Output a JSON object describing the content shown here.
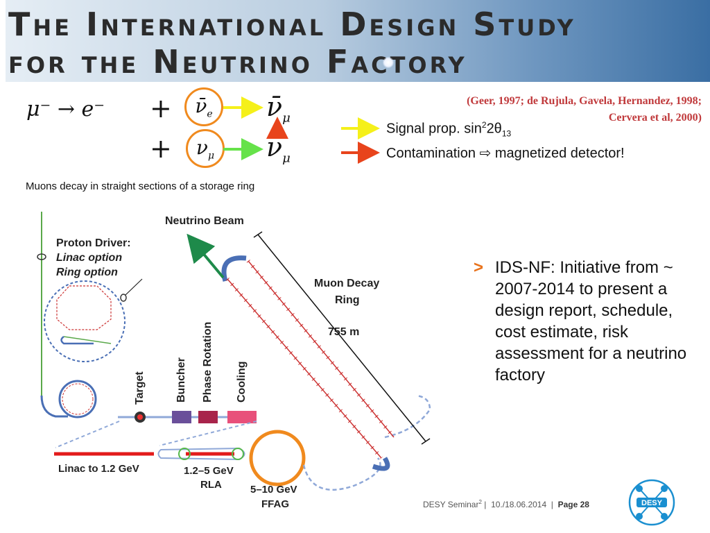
{
  "header": {
    "line1": "The International Design Study",
    "line2": "for the Neutrino Factory"
  },
  "equation": {
    "lhs": "μ⁻ → e⁻",
    "plus": "+",
    "nu_e_bar": "ν̄",
    "nu_e_sub": "e",
    "nu_mu_bar": "ν̄",
    "nu_mu_sub": "μ",
    "nu_mu": "ν",
    "mu_sub": "μ"
  },
  "reference": {
    "line1": "(Geer, 1997; de Rujula, Gavela, Hernandez, 1998;",
    "line2": "Cervera et al, 2000)"
  },
  "legend": {
    "signal_prefix": "Signal prop. sin",
    "signal_sup": "2",
    "signal_mid": "2θ",
    "signal_sub": "13",
    "contamination": "Contamination ⇨ magnetized detector!"
  },
  "caption": "Muons decay in straight sections of a storage ring",
  "diagram": {
    "neutrino_beam": "Neutrino Beam",
    "proton_driver": "Proton Driver:",
    "linac_option": "Linac option",
    "ring_option": "Ring option",
    "muon_decay_ring_1": "Muon Decay",
    "muon_decay_ring_2": "Ring",
    "length": "755 m",
    "target": "Target",
    "buncher": "Buncher",
    "phase_rotation": "Phase Rotation",
    "cooling": "Cooling",
    "linac": "Linac to 1.2 GeV",
    "rla_1": "1.2–5 GeV",
    "rla_2": "RLA",
    "ffag_1": "5–10 GeV",
    "ffag_2": "FFAG"
  },
  "bullet": {
    "marker": ">",
    "text": "IDS-NF: Initiative from ~ 2007-2014 to present a design report, schedule, cost estimate, risk assessment for a neutrino factory"
  },
  "footer": {
    "seminar": "DESY Seminar",
    "seminar_sup": "2",
    "sep1": " |  ",
    "date": "10./18.06.2014",
    "sep2": "  |  ",
    "page": "Page 28"
  },
  "logo": {
    "text": "DESY"
  },
  "colors": {
    "orange": "#f08a1e",
    "yellow_arrow": "#f5f01a",
    "green_arrow": "#66e24a",
    "red_arrow": "#e8441c",
    "reference_red": "#c0393b",
    "logo_blue": "#1a8fd0"
  }
}
